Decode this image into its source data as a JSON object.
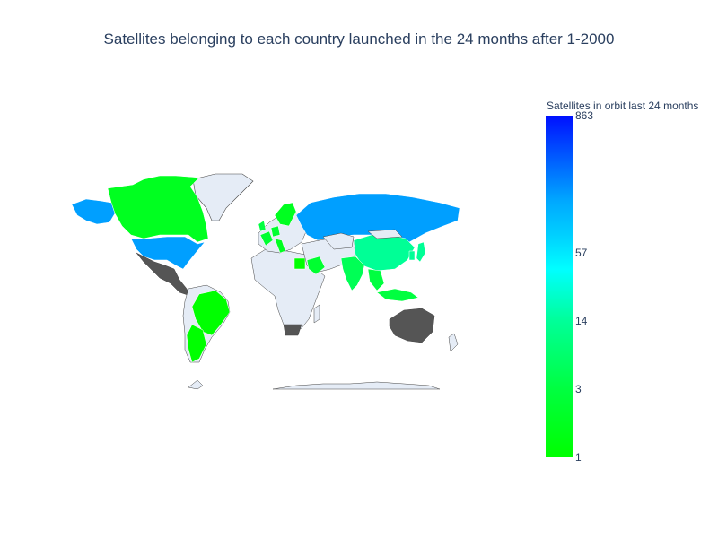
{
  "title": "Satellites belonging to each country launched in the 24 months after 1-2000",
  "colorbar": {
    "title": "Satellites in orbit last 24 months",
    "ticks": [
      {
        "label": "863",
        "value": 863
      },
      {
        "label": "57",
        "value": 57
      },
      {
        "label": "14",
        "value": 14
      },
      {
        "label": "3",
        "value": 3
      },
      {
        "label": "1",
        "value": 1
      }
    ],
    "colors": {
      "low": "#00ff00",
      "mid_low": "#00ff90",
      "mid": "#00ffff",
      "mid_high": "#00a0ff",
      "high": "#0010ff"
    }
  },
  "map": {
    "projection": "natural-earth",
    "land_color": "#e5ecf6",
    "no_data_color": "#555555",
    "coastline_color": "#444444",
    "regions": [
      {
        "name": "USA",
        "value": 200,
        "color": "#009fff"
      },
      {
        "name": "Russia",
        "value": 150,
        "color": "#009fff"
      },
      {
        "name": "China",
        "value": 8,
        "color": "#00ff96"
      },
      {
        "name": "Canada",
        "value": 2,
        "color": "#00ff20"
      },
      {
        "name": "Brazil",
        "value": 1,
        "color": "#00ff00"
      },
      {
        "name": "Argentina",
        "value": 1,
        "color": "#00ff00"
      },
      {
        "name": "India",
        "value": 3,
        "color": "#00ff55"
      },
      {
        "name": "Japan",
        "value": 8,
        "color": "#00ff96"
      },
      {
        "name": "Egypt",
        "value": 1,
        "color": "#00ff00"
      },
      {
        "name": "Saudi Arabia",
        "value": 2,
        "color": "#00ff30"
      },
      {
        "name": "Australia",
        "value": 0,
        "color": "#555555"
      },
      {
        "name": "Mexico",
        "value": 0,
        "color": "#555555"
      },
      {
        "name": "South Africa",
        "value": 0,
        "color": "#555555"
      }
    ]
  }
}
